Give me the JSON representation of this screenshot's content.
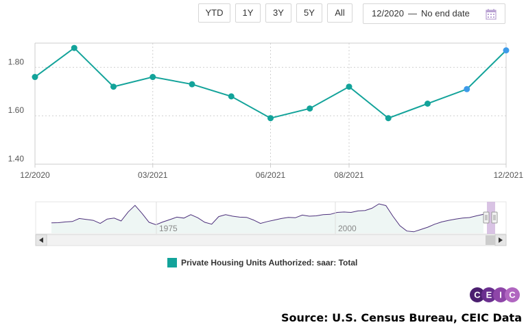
{
  "toolbar": {
    "buttons": [
      "YTD",
      "1Y",
      "3Y",
      "5Y",
      "All"
    ],
    "date_from": "12/2020",
    "date_separator": "—",
    "date_to": "No end date"
  },
  "chart_data": {
    "type": "line",
    "title": "",
    "xlabel": "",
    "ylabel": "",
    "x": [
      "12/2020",
      "01/2021",
      "02/2021",
      "03/2021",
      "04/2021",
      "05/2021",
      "06/2021",
      "07/2021",
      "08/2021",
      "09/2021",
      "10/2021",
      "11/2021",
      "12/2021"
    ],
    "series": [
      {
        "name": "Private Housing Units Authorized: saar: Total",
        "color": "#13a39a",
        "values": [
          1.76,
          1.88,
          1.72,
          1.76,
          1.73,
          1.68,
          1.59,
          1.63,
          1.72,
          1.59,
          1.65,
          1.71,
          1.87
        ]
      }
    ],
    "highlighted_points": [
      11,
      12
    ],
    "highlight_color": "#3d9be9",
    "ylim": [
      1.4,
      1.9
    ],
    "yticks": [
      1.4,
      1.6,
      1.8
    ],
    "ytick_labels": [
      "1.40",
      "1.60",
      "1.80"
    ],
    "xtick_labels": [
      "12/2020",
      "03/2021",
      "06/2021",
      "08/2021",
      "12/2021"
    ],
    "xtick_indices": [
      0,
      3,
      6,
      8,
      12
    ],
    "grid": true
  },
  "navigator": {
    "labels": [
      "1975",
      "2000"
    ],
    "series_color": "#4b2e7a",
    "overview_values": [
      1.05,
      1.06,
      1.1,
      1.12,
      1.28,
      1.23,
      1.18,
      1.02,
      1.25,
      1.3,
      1.15,
      1.62,
      1.97,
      1.55,
      1.08,
      0.95,
      1.1,
      1.22,
      1.35,
      1.3,
      1.48,
      1.32,
      1.08,
      0.98,
      1.38,
      1.48,
      1.4,
      1.35,
      1.34,
      1.2,
      1.02,
      1.12,
      1.2,
      1.28,
      1.34,
      1.32,
      1.46,
      1.4,
      1.42,
      1.48,
      1.5,
      1.6,
      1.62,
      1.6,
      1.68,
      1.7,
      1.82,
      2.05,
      1.96,
      1.4,
      0.9,
      0.62,
      0.58,
      0.7,
      0.82,
      0.98,
      1.1,
      1.18,
      1.25,
      1.3,
      1.33,
      1.42,
      1.5
    ]
  },
  "legend": {
    "label": "Private Housing Units Authorized: saar: Total",
    "color": "#13a39a"
  },
  "branding": {
    "logo_text": "CEIC",
    "source": "Source: U.S. Census Bureau, CEIC Data"
  }
}
